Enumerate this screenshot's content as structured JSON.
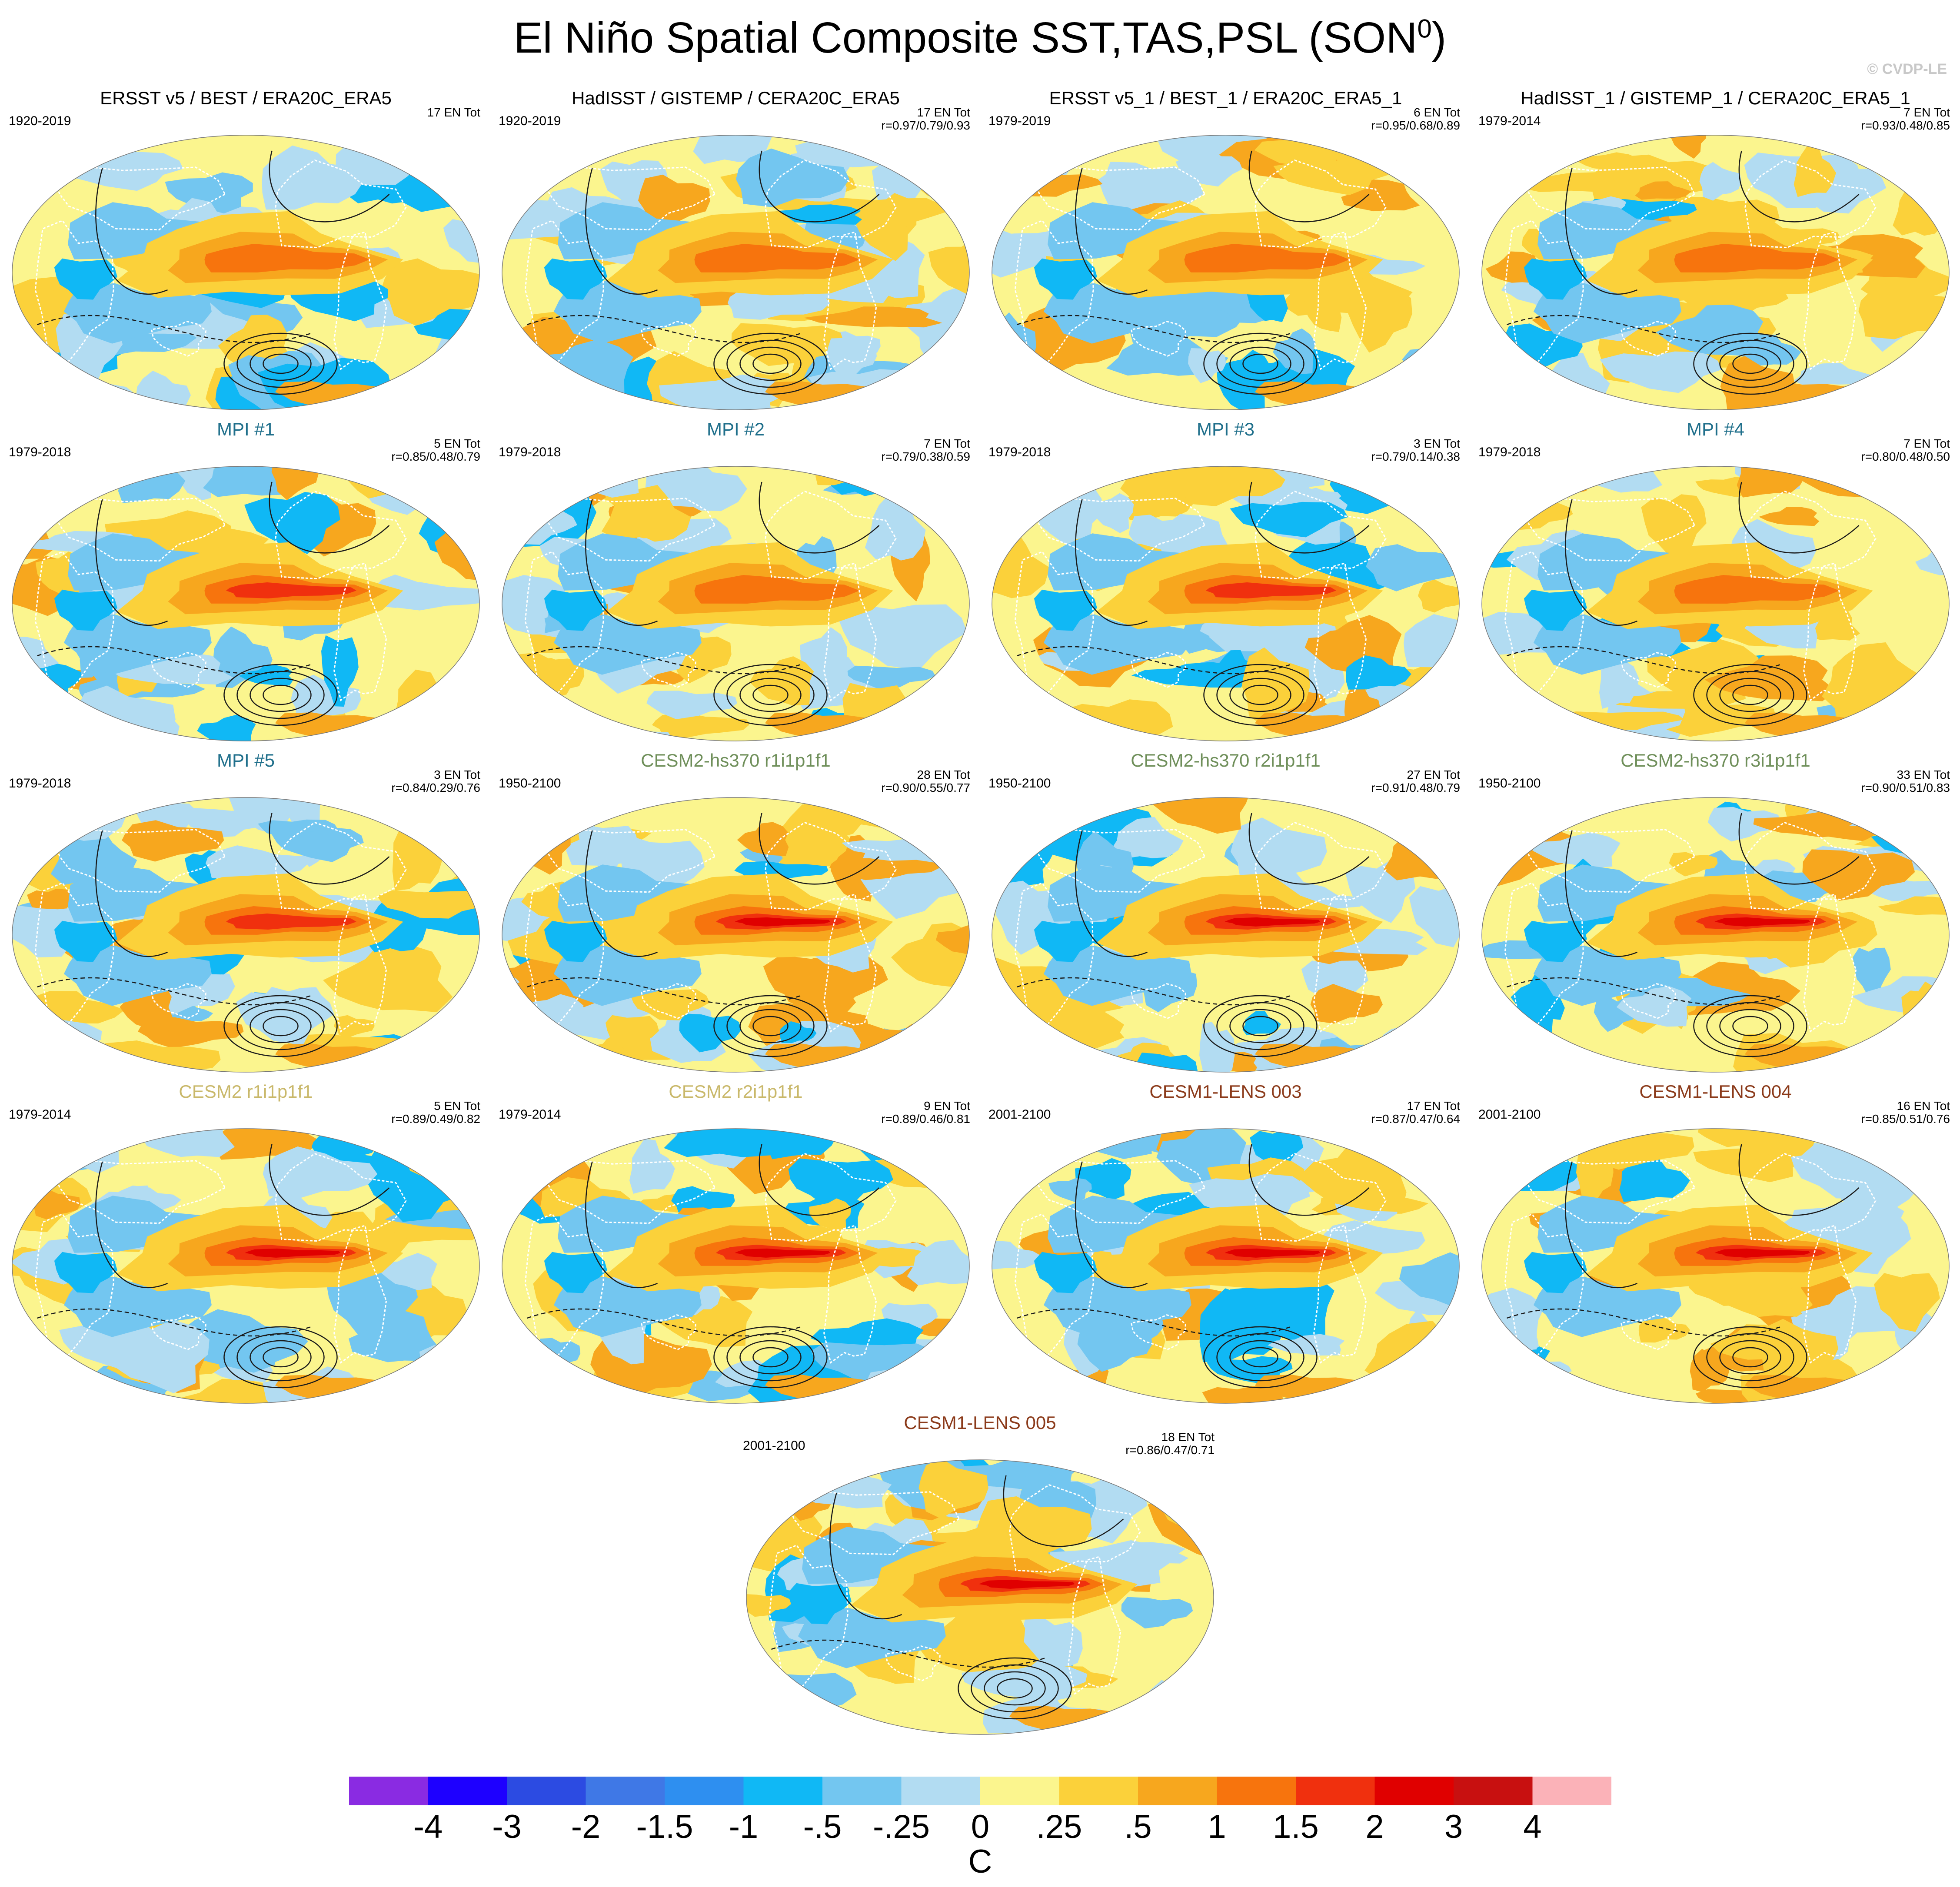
{
  "title": {
    "text": "El Niño Spatial Composite SST,TAS,PSL (SON",
    "superscript": "0",
    "close": ")"
  },
  "credit": "© CVDP-LE",
  "colors": {
    "obs_title": "#000000",
    "mpi_title": "#1f6f8b",
    "cesm2hs_title": "#6f8f5a",
    "cesm2_title": "#c9b86a",
    "cesm1_title": "#8b3a1a",
    "ocean_base": "#fcf48c",
    "contour": "#1a1a1a",
    "coast": "#ffffff"
  },
  "chart_data": {
    "type": "heatmap",
    "projection": "Robinson (Pacific-centred)",
    "fields": [
      "SST/TAS shading (C)",
      "PSL contours"
    ],
    "colorbar": {
      "unit": "C",
      "ticks": [
        "-4",
        "-3",
        "-2",
        "-1.5",
        "-1",
        "-.5",
        "-.25",
        "0",
        ".25",
        ".5",
        "1",
        "1.5",
        "2",
        "3",
        "4"
      ],
      "colors": [
        "#8a2be2",
        "#1e00ff",
        "#2c4be2",
        "#3f78e6",
        "#2e8ff0",
        "#10b8f5",
        "#73c6f0",
        "#b2dcf2",
        "#fbf58e",
        "#fbd13a",
        "#f7a71e",
        "#f7740d",
        "#f0300e",
        "#e00000",
        "#c81010",
        "#fbb2b8"
      ]
    },
    "panels": [
      {
        "title": "ERSST v5 / BEST / ERA20C_ERA5",
        "title_color": "obs_title",
        "years": "1920-2019",
        "count": "17 EN Tot",
        "corr": "",
        "nino_strength": 0.55
      },
      {
        "title": "HadISST / GISTEMP / CERA20C_ERA5",
        "title_color": "obs_title",
        "years": "1920-2019",
        "count": "17 EN Tot",
        "corr": "r=0.97/0.79/0.93",
        "nino_strength": 0.55
      },
      {
        "title": "ERSST v5_1 / BEST_1 / ERA20C_ERA5_1",
        "title_color": "obs_title",
        "years": "1979-2019",
        "count": "6 EN Tot",
        "corr": "r=0.95/0.68/0.89",
        "nino_strength": 0.6
      },
      {
        "title": "HadISST_1 / GISTEMP_1 / CERA20C_ERA5_1",
        "title_color": "obs_title",
        "years": "1979-2014",
        "count": "7 EN Tot",
        "corr": "r=0.93/0.48/0.85",
        "nino_strength": 0.55
      },
      {
        "title": "MPI #1",
        "title_color": "mpi_title",
        "years": "1979-2018",
        "count": "5 EN Tot",
        "corr": "r=0.85/0.48/0.79",
        "nino_strength": 0.75
      },
      {
        "title": "MPI #2",
        "title_color": "mpi_title",
        "years": "1979-2018",
        "count": "7 EN Tot",
        "corr": "r=0.79/0.38/0.59",
        "nino_strength": 0.6
      },
      {
        "title": "MPI #3",
        "title_color": "mpi_title",
        "years": "1979-2018",
        "count": "3 EN Tot",
        "corr": "r=0.79/0.14/0.38",
        "nino_strength": 0.75
      },
      {
        "title": "MPI #4",
        "title_color": "mpi_title",
        "years": "1979-2018",
        "count": "7 EN Tot",
        "corr": "r=0.80/0.48/0.50",
        "nino_strength": 0.6
      },
      {
        "title": "MPI #5",
        "title_color": "mpi_title",
        "years": "1979-2018",
        "count": "3 EN Tot",
        "corr": "r=0.84/0.29/0.76",
        "nino_strength": 0.85
      },
      {
        "title": "CESM2-hs370 r1i1p1f1",
        "title_color": "cesm2hs_title",
        "years": "1950-2100",
        "count": "28 EN Tot",
        "corr": "r=0.90/0.55/0.77",
        "nino_strength": 0.9
      },
      {
        "title": "CESM2-hs370 r2i1p1f1",
        "title_color": "cesm2hs_title",
        "years": "1950-2100",
        "count": "27 EN Tot",
        "corr": "r=0.91/0.48/0.79",
        "nino_strength": 0.9
      },
      {
        "title": "CESM2-hs370 r3i1p1f1",
        "title_color": "cesm2hs_title",
        "years": "1950-2100",
        "count": "33 EN Tot",
        "corr": "r=0.90/0.51/0.83",
        "nino_strength": 0.9
      },
      {
        "title": "CESM2 r1i1p1f1",
        "title_color": "cesm2_title",
        "years": "1979-2014",
        "count": "5 EN Tot",
        "corr": "r=0.89/0.49/0.82",
        "nino_strength": 0.9
      },
      {
        "title": "CESM2 r2i1p1f1",
        "title_color": "cesm2_title",
        "years": "1979-2014",
        "count": "9 EN Tot",
        "corr": "r=0.89/0.46/0.81",
        "nino_strength": 0.9
      },
      {
        "title": "CESM1-LENS 003",
        "title_color": "cesm1_title",
        "years": "2001-2100",
        "count": "17 EN Tot",
        "corr": "r=0.87/0.47/0.64",
        "nino_strength": 0.9
      },
      {
        "title": "CESM1-LENS 004",
        "title_color": "cesm1_title",
        "years": "2001-2100",
        "count": "16 EN Tot",
        "corr": "r=0.85/0.51/0.76",
        "nino_strength": 0.9
      },
      {
        "title": "CESM1-LENS 005",
        "title_color": "cesm1_title",
        "years": "2001-2100",
        "count": "18 EN Tot",
        "corr": "r=0.86/0.47/0.71",
        "nino_strength": 0.9
      }
    ]
  }
}
